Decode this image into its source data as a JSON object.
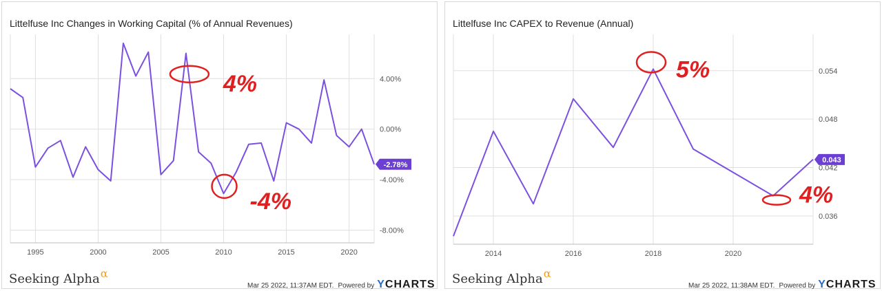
{
  "colors": {
    "line": "#7b4fe0",
    "annotation": "#e02020",
    "grid": "#dfdfdf",
    "axis": "#555555",
    "badge": "#6a3fd1"
  },
  "footer": {
    "brand": "Seeking Alpha",
    "alpha": "α",
    "powered": "Powered by",
    "ycharts_y": "Y",
    "ycharts_rest": "CHARTS"
  },
  "panels": [
    {
      "title": "Littelfuse Inc Changes in Working Capital (% of Annual Revenues)",
      "timestamp": "Mar 25 2022, 11:37AM EDT."
    },
    {
      "title": "Littelfuse Inc CAPEX to Revenue (Annual)",
      "timestamp": "Mar 25 2022, 11:38AM EDT."
    }
  ],
  "chart_data": [
    {
      "type": "line",
      "title": "Littelfuse Inc Changes in Working Capital (% of Annual Revenues)",
      "x": [
        1993,
        1994,
        1995,
        1996,
        1997,
        1998,
        1999,
        2000,
        2001,
        2002,
        2003,
        2004,
        2005,
        2006,
        2007,
        2008,
        2009,
        2010,
        2011,
        2012,
        2013,
        2014,
        2015,
        2016,
        2017,
        2018,
        2019,
        2020,
        2021,
        2022
      ],
      "series": [
        {
          "values": [
            3.2,
            2.5,
            -3.0,
            -1.5,
            -0.9,
            -3.8,
            -1.4,
            -3.2,
            -4.1,
            6.8,
            4.2,
            6.1,
            -3.6,
            -2.5,
            6.0,
            -1.8,
            -2.7,
            -5.1,
            -3.4,
            -1.2,
            -1.1,
            -4.1,
            0.5,
            0.0,
            -1.1,
            3.9,
            -0.5,
            -1.4,
            0.0,
            -2.78
          ]
        }
      ],
      "xticks": [
        "1995",
        "2000",
        "2005",
        "2010",
        "2015",
        "2020"
      ],
      "yticks": [
        "4.00%",
        "0.00%",
        "-4.00%",
        "-8.00%"
      ],
      "ylim": [
        -9.0,
        7.5
      ],
      "last_value_label": "-2.78%",
      "annotations": [
        {
          "text": "4%",
          "x": 2007,
          "y": 4.3
        },
        {
          "text": "-4%",
          "x": 2010,
          "y": -4.8
        }
      ]
    },
    {
      "type": "line",
      "title": "Littelfuse Inc CAPEX to Revenue (Annual)",
      "x": [
        2013,
        2014,
        2015,
        2016,
        2017,
        2018,
        2019,
        2020,
        2021,
        2022
      ],
      "series": [
        {
          "values": [
            0.0335,
            0.0465,
            0.0375,
            0.0505,
            0.0445,
            0.0542,
            0.0443,
            0.0414,
            0.0385,
            0.043
          ]
        }
      ],
      "xticks": [
        "2014",
        "2016",
        "2018",
        "2020"
      ],
      "yticks": [
        "0.054",
        "0.048",
        "0.042",
        "0.036"
      ],
      "ylim": [
        0.0325,
        0.0585
      ],
      "last_value_label": "0.043",
      "annotations": [
        {
          "text": "5%",
          "x": 2018,
          "y": 0.0542
        },
        {
          "text": "4%",
          "x": 2021,
          "y": 0.0385
        }
      ]
    }
  ]
}
